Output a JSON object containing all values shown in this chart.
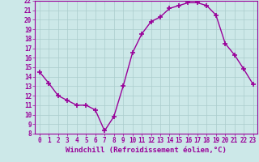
{
  "hours": [
    0,
    1,
    2,
    3,
    4,
    5,
    6,
    7,
    8,
    9,
    10,
    11,
    12,
    13,
    14,
    15,
    16,
    17,
    18,
    19,
    20,
    21,
    22,
    23
  ],
  "values": [
    14.5,
    13.3,
    12.0,
    11.5,
    11.0,
    11.0,
    10.5,
    8.3,
    9.8,
    13.0,
    16.5,
    18.5,
    19.8,
    20.3,
    21.2,
    21.5,
    21.8,
    21.8,
    21.5,
    20.5,
    17.5,
    16.3,
    14.8,
    13.2
  ],
  "line_color": "#990099",
  "marker": "+",
  "marker_size": 5,
  "linewidth": 1.0,
  "background_color": "#cce8e8",
  "grid_color": "#aacccc",
  "tick_color": "#990099",
  "xlabel": "Windchill (Refroidissement éolien,°C)",
  "xlabel_fontsize": 6.5,
  "ylim": [
    8,
    22
  ],
  "xlim": [
    -0.5,
    23.5
  ],
  "yticks": [
    8,
    9,
    10,
    11,
    12,
    13,
    14,
    15,
    16,
    17,
    18,
    19,
    20,
    21,
    22
  ],
  "xticks": [
    0,
    1,
    2,
    3,
    4,
    5,
    6,
    7,
    8,
    9,
    10,
    11,
    12,
    13,
    14,
    15,
    16,
    17,
    18,
    19,
    20,
    21,
    22,
    23
  ],
  "tick_fontsize": 5.5
}
